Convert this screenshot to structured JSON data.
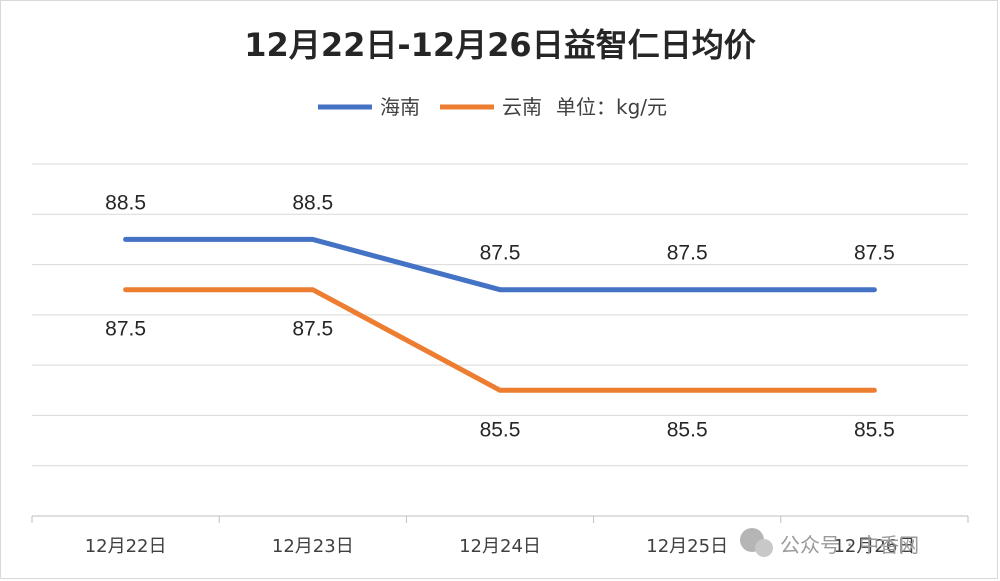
{
  "chart_data": {
    "type": "line",
    "title": "12月22日-12月26日益智仁日均价",
    "unit_note": "单位：kg/元",
    "categories": [
      "12月22日",
      "12月23日",
      "12月24日",
      "12月25日",
      "12月26日"
    ],
    "series": [
      {
        "name": "海南",
        "color": "#4472C4",
        "values": [
          88.5,
          88.5,
          87.5,
          87.5,
          87.5
        ]
      },
      {
        "name": "云南",
        "color": "#ED7D31",
        "values": [
          87.5,
          87.5,
          85.5,
          85.5,
          85.5
        ]
      }
    ],
    "ylim": [
      83,
      90
    ],
    "grid": true,
    "legend_position": "top",
    "xlabel": "",
    "ylabel": ""
  },
  "watermark": {
    "text": "公众号 · 中香网"
  }
}
